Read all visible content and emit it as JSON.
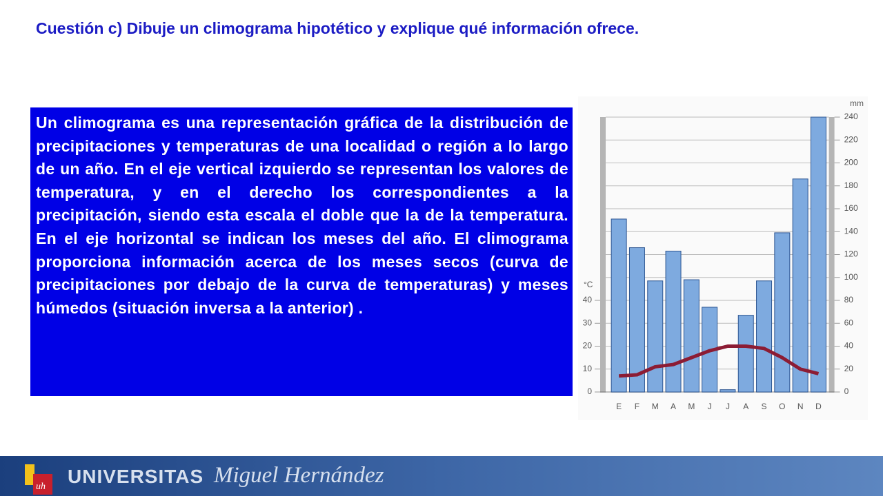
{
  "header": {
    "title": "Cuestión c) Dibuje un climograma hipotético y explique qué información ofrece."
  },
  "body": {
    "paragraph": "Un climograma es una representación gráfica de la distribución de precipitaciones y temperaturas de una localidad o región a lo largo de un año. En el eje vertical izquierdo se representan los valores de temperatura, y en el derecho los correspondientes a la precipitación, siendo esta escala el doble que la de la temperatura. En el eje horizontal se indican los meses del año. El climograma proporciona información acerca de los meses secos (curva de precipitaciones por debajo de la curva de temperaturas) y meses húmedos (situación inversa a la anterior) ."
  },
  "chart_data": {
    "type": "bar",
    "y_label": "°C",
    "y2_label": "mm",
    "categories": [
      "E",
      "F",
      "M",
      "A",
      "M",
      "J",
      "J",
      "A",
      "S",
      "O",
      "N",
      "D"
    ],
    "series": [
      {
        "type": "bar",
        "axis": "y2",
        "color": "#7eaadf",
        "values": [
          151,
          126,
          97,
          123,
          98,
          74,
          2,
          67,
          97,
          139,
          186,
          240
        ]
      },
      {
        "type": "line",
        "color": "#8c1c34",
        "values": [
          7,
          7.5,
          11,
          12,
          15,
          18,
          20,
          20,
          19,
          15,
          10,
          8
        ]
      }
    ],
    "ylim": [
      0,
      120
    ],
    "yticks": [
      0,
      10,
      20,
      30,
      40
    ],
    "y2lim": [
      0,
      240
    ],
    "y2ticks": [
      0,
      20,
      40,
      60,
      80,
      100,
      120,
      140,
      160,
      180,
      200,
      220,
      240
    ],
    "grid": true
  },
  "footer": {
    "brand": "UNIVERSITAS",
    "name": "Miguel Hernández"
  }
}
